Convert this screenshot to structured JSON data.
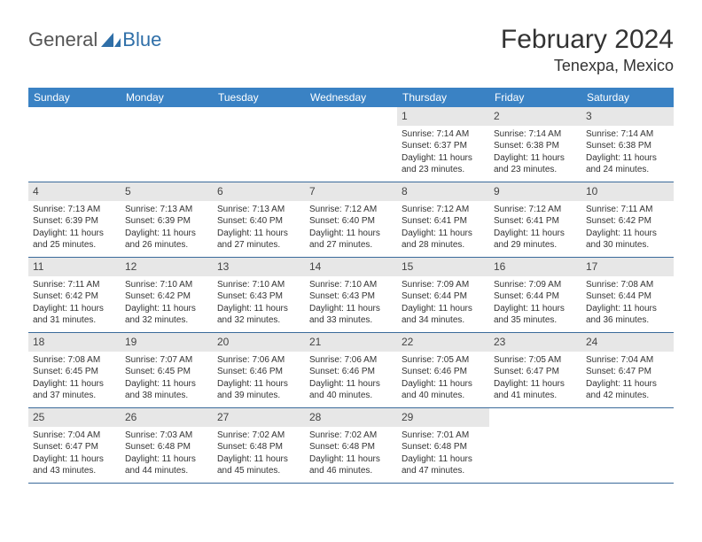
{
  "logo": {
    "part1": "General",
    "part2": "Blue"
  },
  "title": "February 2024",
  "location": "Tenexpa, Mexico",
  "colors": {
    "header_bg": "#3a82c4",
    "header_text": "#ffffff",
    "daynum_bg": "#e7e7e7",
    "week_border": "#3a6a9a",
    "logo_accent": "#2f6fa8",
    "text": "#333333"
  },
  "weekdays": [
    "Sunday",
    "Monday",
    "Tuesday",
    "Wednesday",
    "Thursday",
    "Friday",
    "Saturday"
  ],
  "weeks": [
    [
      null,
      null,
      null,
      null,
      {
        "n": "1",
        "sr": "7:14 AM",
        "ss": "6:37 PM",
        "dl": "11 hours and 23 minutes."
      },
      {
        "n": "2",
        "sr": "7:14 AM",
        "ss": "6:38 PM",
        "dl": "11 hours and 23 minutes."
      },
      {
        "n": "3",
        "sr": "7:14 AM",
        "ss": "6:38 PM",
        "dl": "11 hours and 24 minutes."
      }
    ],
    [
      {
        "n": "4",
        "sr": "7:13 AM",
        "ss": "6:39 PM",
        "dl": "11 hours and 25 minutes."
      },
      {
        "n": "5",
        "sr": "7:13 AM",
        "ss": "6:39 PM",
        "dl": "11 hours and 26 minutes."
      },
      {
        "n": "6",
        "sr": "7:13 AM",
        "ss": "6:40 PM",
        "dl": "11 hours and 27 minutes."
      },
      {
        "n": "7",
        "sr": "7:12 AM",
        "ss": "6:40 PM",
        "dl": "11 hours and 27 minutes."
      },
      {
        "n": "8",
        "sr": "7:12 AM",
        "ss": "6:41 PM",
        "dl": "11 hours and 28 minutes."
      },
      {
        "n": "9",
        "sr": "7:12 AM",
        "ss": "6:41 PM",
        "dl": "11 hours and 29 minutes."
      },
      {
        "n": "10",
        "sr": "7:11 AM",
        "ss": "6:42 PM",
        "dl": "11 hours and 30 minutes."
      }
    ],
    [
      {
        "n": "11",
        "sr": "7:11 AM",
        "ss": "6:42 PM",
        "dl": "11 hours and 31 minutes."
      },
      {
        "n": "12",
        "sr": "7:10 AM",
        "ss": "6:42 PM",
        "dl": "11 hours and 32 minutes."
      },
      {
        "n": "13",
        "sr": "7:10 AM",
        "ss": "6:43 PM",
        "dl": "11 hours and 32 minutes."
      },
      {
        "n": "14",
        "sr": "7:10 AM",
        "ss": "6:43 PM",
        "dl": "11 hours and 33 minutes."
      },
      {
        "n": "15",
        "sr": "7:09 AM",
        "ss": "6:44 PM",
        "dl": "11 hours and 34 minutes."
      },
      {
        "n": "16",
        "sr": "7:09 AM",
        "ss": "6:44 PM",
        "dl": "11 hours and 35 minutes."
      },
      {
        "n": "17",
        "sr": "7:08 AM",
        "ss": "6:44 PM",
        "dl": "11 hours and 36 minutes."
      }
    ],
    [
      {
        "n": "18",
        "sr": "7:08 AM",
        "ss": "6:45 PM",
        "dl": "11 hours and 37 minutes."
      },
      {
        "n": "19",
        "sr": "7:07 AM",
        "ss": "6:45 PM",
        "dl": "11 hours and 38 minutes."
      },
      {
        "n": "20",
        "sr": "7:06 AM",
        "ss": "6:46 PM",
        "dl": "11 hours and 39 minutes."
      },
      {
        "n": "21",
        "sr": "7:06 AM",
        "ss": "6:46 PM",
        "dl": "11 hours and 40 minutes."
      },
      {
        "n": "22",
        "sr": "7:05 AM",
        "ss": "6:46 PM",
        "dl": "11 hours and 40 minutes."
      },
      {
        "n": "23",
        "sr": "7:05 AM",
        "ss": "6:47 PM",
        "dl": "11 hours and 41 minutes."
      },
      {
        "n": "24",
        "sr": "7:04 AM",
        "ss": "6:47 PM",
        "dl": "11 hours and 42 minutes."
      }
    ],
    [
      {
        "n": "25",
        "sr": "7:04 AM",
        "ss": "6:47 PM",
        "dl": "11 hours and 43 minutes."
      },
      {
        "n": "26",
        "sr": "7:03 AM",
        "ss": "6:48 PM",
        "dl": "11 hours and 44 minutes."
      },
      {
        "n": "27",
        "sr": "7:02 AM",
        "ss": "6:48 PM",
        "dl": "11 hours and 45 minutes."
      },
      {
        "n": "28",
        "sr": "7:02 AM",
        "ss": "6:48 PM",
        "dl": "11 hours and 46 minutes."
      },
      {
        "n": "29",
        "sr": "7:01 AM",
        "ss": "6:48 PM",
        "dl": "11 hours and 47 minutes."
      },
      null,
      null
    ]
  ],
  "labels": {
    "sunrise": "Sunrise:",
    "sunset": "Sunset:",
    "daylight": "Daylight:"
  }
}
